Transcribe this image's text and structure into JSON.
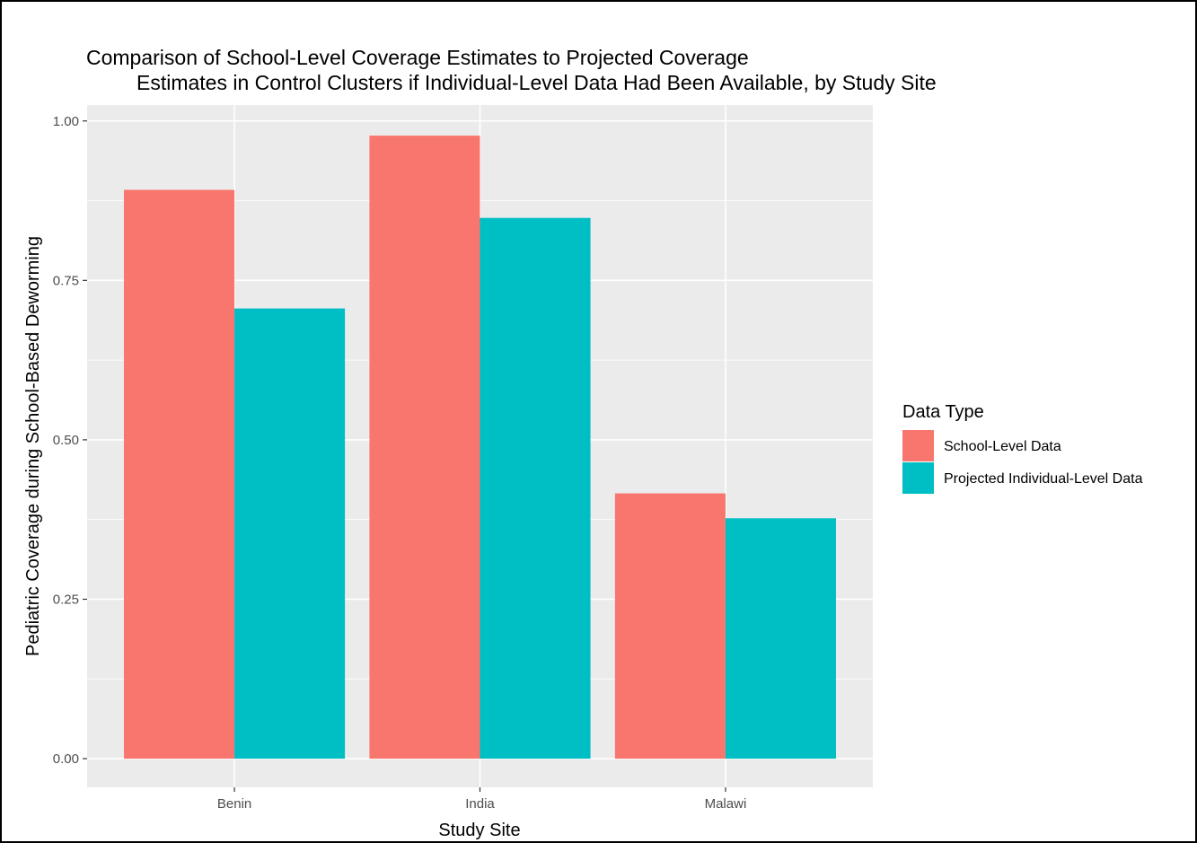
{
  "chart_data": {
    "type": "bar",
    "title": "Comparison of School-Level Coverage Estimates to Projected Coverage",
    "title_line2": "Estimates in Control Clusters if Individual-Level Data Had Been Available, by Study Site",
    "xlabel": "Study Site",
    "ylabel": "Pediatric Coverage during School-Based Deworming",
    "categories": [
      "Benin",
      "India",
      "Malawi"
    ],
    "series": [
      {
        "name": "School-Level Data",
        "color": "#F8766D",
        "values": [
          0.892,
          0.977,
          0.416
        ]
      },
      {
        "name": "Projected Individual-Level Data",
        "color": "#00BFC4",
        "values": [
          0.706,
          0.848,
          0.377
        ]
      }
    ],
    "ylim": [
      -0.045,
      1.025
    ],
    "yticks": [
      0.0,
      0.25,
      0.5,
      0.75,
      1.0
    ],
    "ytick_labels": [
      "0.00",
      "0.25",
      "0.50",
      "0.75",
      "1.00"
    ],
    "legend": {
      "title": "Data Type",
      "position": "right"
    },
    "panel_background": "#EBEBEB",
    "gridline_color": "#FFFFFF",
    "grid": true
  }
}
